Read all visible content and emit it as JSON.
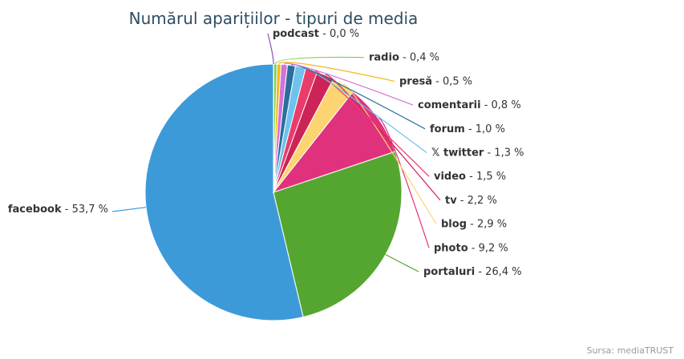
{
  "chart_data": {
    "type": "pie",
    "title": "Numărul aparițiilor - tipuri de media",
    "unit": "%",
    "slices": [
      {
        "name": "facebook",
        "value": 53.7,
        "display": "53,7",
        "color": "#3d9ad9"
      },
      {
        "name": "portaluri",
        "value": 26.4,
        "display": "26,4",
        "color": "#55a630"
      },
      {
        "name": "photo",
        "value": 9.2,
        "display": "9,2",
        "color": "#e0317d"
      },
      {
        "name": "blog",
        "value": 2.9,
        "display": "2,9",
        "color": "#fcd572"
      },
      {
        "name": "tv",
        "value": 2.2,
        "display": "2,2",
        "color": "#cc2456"
      },
      {
        "name": "video",
        "value": 1.5,
        "display": "1,5",
        "color": "#ea3c6c"
      },
      {
        "name": "twitter",
        "value": 1.3,
        "display": "1,3",
        "color": "#6ec2ee",
        "icon": "x-logo-icon"
      },
      {
        "name": "forum",
        "value": 1.0,
        "display": "1,0",
        "color": "#2a6f9c"
      },
      {
        "name": "comentarii",
        "value": 0.8,
        "display": "0,8",
        "color": "#d571dc"
      },
      {
        "name": "presă",
        "value": 0.5,
        "display": "0,5",
        "color": "#f5b81b"
      },
      {
        "name": "radio",
        "value": 0.4,
        "display": "0,4",
        "color": "#7ed24a"
      },
      {
        "name": "podcast",
        "value": 0.04,
        "display": "0,0",
        "color": "#8d4cb5"
      }
    ]
  },
  "credit": "Sursa: mediaTRUST"
}
